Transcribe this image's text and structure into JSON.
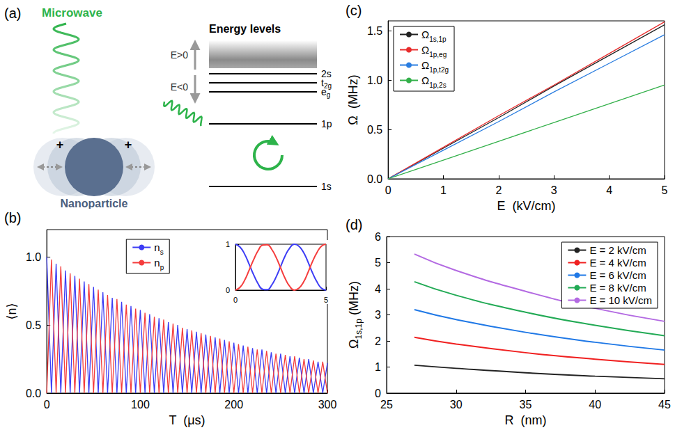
{
  "diagram": {
    "label": "(a)",
    "microwave": "Microwave",
    "title": "Energy levels",
    "continuum": "E>0",
    "bound": "E<0",
    "levels": [
      "2s",
      "t2g",
      "eg",
      "1p",
      "1s"
    ],
    "particle": "Nanoparticle",
    "charges": [
      "+",
      "+"
    ]
  },
  "chart_data": [
    {
      "label": "(b)",
      "type": "line",
      "x_label": "T  (μs)",
      "y_label": "⟨n⟩",
      "grid": false,
      "legend": "top",
      "x": [
        0,
        5,
        10,
        15,
        20,
        25,
        30,
        35,
        40,
        45,
        50,
        55,
        60,
        65,
        70,
        75,
        80,
        85,
        90,
        95,
        100,
        105,
        110,
        115,
        120,
        125,
        130,
        135,
        140,
        145,
        150,
        155,
        160,
        165,
        170,
        175,
        180,
        185,
        190,
        195,
        200,
        205,
        210,
        215,
        220,
        225,
        230,
        235,
        240,
        245,
        250,
        255,
        260,
        265,
        270,
        275,
        280,
        285,
        290,
        295,
        300
      ],
      "xlim": [
        0,
        300
      ],
      "xticks": [
        0,
        100,
        200,
        300
      ],
      "ylim": [
        0,
        1.2
      ],
      "yticks": [
        {
          "value": 0,
          "label": "0.0"
        },
        {
          "value": 0.5,
          "label": "0.5"
        },
        {
          "value": 1,
          "label": "1.0"
        }
      ],
      "series": [
        {
          "name": "ns",
          "color": "#3c3cf5",
          "values": [
            1,
            0,
            0.95,
            0,
            0.9,
            0,
            0.86,
            0,
            0.82,
            0,
            0.78,
            0,
            0.74,
            0,
            0.7,
            0,
            0.67,
            0,
            0.64,
            0,
            0.61,
            0,
            0.58,
            0,
            0.55,
            0,
            0.52,
            0,
            0.5,
            0,
            0.47,
            0,
            0.45,
            0,
            0.43,
            0,
            0.41,
            0,
            0.39,
            0,
            0.37,
            0,
            0.35,
            0,
            0.33,
            0,
            0.32,
            0,
            0.3,
            0,
            0.29,
            0,
            0.27,
            0,
            0.26,
            0,
            0.25,
            0,
            0.23,
            0,
            0.22
          ]
        },
        {
          "name": "np",
          "color": "#f53c3c",
          "values": [
            0,
            0.98,
            0,
            0.93,
            0,
            0.88,
            0,
            0.84,
            0,
            0.8,
            0,
            0.76,
            0,
            0.72,
            0,
            0.69,
            0,
            0.65,
            0,
            0.62,
            0,
            0.59,
            0,
            0.56,
            0,
            0.54,
            0,
            0.51,
            0,
            0.48,
            0,
            0.46,
            0,
            0.44,
            0,
            0.42,
            0,
            0.4,
            0,
            0.38,
            0,
            0.36,
            0,
            0.34,
            0,
            0.32,
            0,
            0.31,
            0,
            0.29,
            0,
            0.28,
            0,
            0.27,
            0,
            0.25,
            0,
            0.24,
            0,
            0.23,
            0
          ]
        }
      ],
      "inset": {
        "type": "line",
        "grid": false,
        "x": [
          0,
          0.25,
          0.5,
          0.75,
          1,
          1.25,
          1.5,
          1.75,
          2,
          2.25,
          2.5,
          2.75,
          3,
          3.25,
          3.5,
          3.75,
          4,
          4.25,
          4.5,
          4.75,
          5
        ],
        "xlim": [
          0,
          5
        ],
        "xticks": [
          0,
          5
        ],
        "ylim": [
          0,
          1
        ],
        "yticks": [
          0,
          1
        ],
        "series": [
          {
            "color": "#3c3cf5",
            "values": [
              1,
              0.94,
              0.79,
              0.57,
              0.34,
              0.14,
              0.02,
              0.01,
              0.11,
              0.29,
              0.52,
              0.75,
              0.92,
              1,
              0.96,
              0.83,
              0.62,
              0.38,
              0.18,
              0.04,
              0
            ]
          },
          {
            "color": "#f53c3c",
            "values": [
              0,
              0.06,
              0.21,
              0.43,
              0.66,
              0.86,
              0.98,
              0.99,
              0.89,
              0.71,
              0.48,
              0.25,
              0.08,
              0,
              0.04,
              0.17,
              0.38,
              0.62,
              0.82,
              0.96,
              1
            ]
          }
        ]
      }
    },
    {
      "label": "(c)",
      "type": "line",
      "x_label": "E  (kV/cm)",
      "y_label": "Ω  (MHz)",
      "grid": false,
      "legend": "top-left",
      "x": [
        0,
        1,
        2,
        3,
        4,
        5
      ],
      "xlim": [
        0,
        5
      ],
      "xticks": [
        0,
        1,
        2,
        3,
        4,
        5
      ],
      "ylim": [
        0,
        1.6
      ],
      "yticks": [
        {
          "value": 0,
          "label": "0.0"
        },
        0.5,
        {
          "value": 1,
          "label": "1.0"
        },
        1.5
      ],
      "series": [
        {
          "name": "Ω1s,1p",
          "color": "#222222",
          "values": [
            0,
            0.31,
            0.62,
            0.94,
            1.25,
            1.56
          ]
        },
        {
          "name": "Ω1p,eg",
          "color": "#e82c2c",
          "values": [
            0,
            0.32,
            0.64,
            0.95,
            1.27,
            1.59
          ]
        },
        {
          "name": "Ω1p,t2g",
          "color": "#2a7de0",
          "values": [
            0,
            0.29,
            0.58,
            0.88,
            1.17,
            1.46
          ]
        },
        {
          "name": "Ω1p,2s",
          "color": "#33b04a",
          "values": [
            0,
            0.19,
            0.38,
            0.57,
            0.76,
            0.95
          ]
        }
      ]
    },
    {
      "label": "(d)",
      "type": "line",
      "x_label": "R  (nm)",
      "y_label": "Ω1s,1p (MHz)",
      "grid": false,
      "legend": "top-right",
      "x": [
        27,
        30,
        35,
        40,
        45
      ],
      "xlim": [
        25,
        45
      ],
      "xticks": [
        25,
        30,
        35,
        40,
        45
      ],
      "ylim": [
        0,
        6
      ],
      "yticks": [
        0,
        1,
        2,
        3,
        4,
        5,
        6
      ],
      "series": [
        {
          "name": "E = 2 kV/cm",
          "color": "#222222",
          "values": [
            1.07,
            0.95,
            0.78,
            0.65,
            0.55
          ]
        },
        {
          "name": "E = 4 kV/cm",
          "color": "#f02020",
          "values": [
            2.14,
            1.88,
            1.55,
            1.3,
            1.1
          ]
        },
        {
          "name": "E = 6 kV/cm",
          "color": "#1f78e6",
          "values": [
            3.2,
            2.82,
            2.33,
            1.95,
            1.65
          ]
        },
        {
          "name": "E = 8 kV/cm",
          "color": "#22aa55",
          "values": [
            4.27,
            3.75,
            3.1,
            2.6,
            2.2
          ]
        },
        {
          "name": "E = 10 kV/cm",
          "color": "#b36ae2",
          "values": [
            5.33,
            4.7,
            3.9,
            3.25,
            2.75
          ]
        }
      ]
    }
  ]
}
